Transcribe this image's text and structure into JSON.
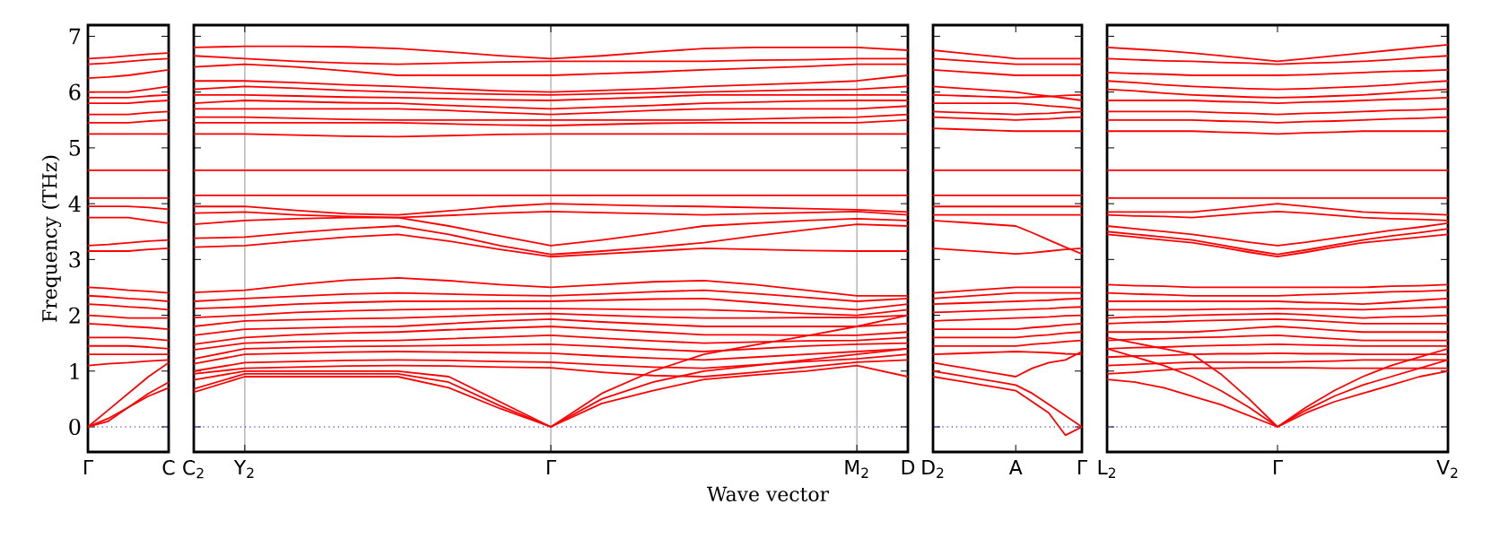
{
  "chart_data": [
    {
      "type": "line",
      "ylabel": "Frequency (THz)",
      "categories": [
        "Γ",
        null,
        null,
        null,
        "C"
      ],
      "ylim": [
        -0.45,
        7.2
      ],
      "yticks": [
        0,
        1,
        2,
        3,
        4,
        5,
        6,
        7
      ],
      "ref_lines": [
        {
          "axis": "y",
          "value": 0,
          "color": "#0000ff",
          "line_style": "dotted"
        }
      ],
      "series": [
        {
          "color": "#ff0000",
          "values": [
            6.6,
            6.62,
            6.65,
            6.68,
            6.7
          ]
        },
        {
          "color": "#ff0000",
          "values": [
            6.5,
            6.52,
            6.55,
            6.58,
            6.6
          ]
        },
        {
          "color": "#ff0000",
          "values": [
            6.25,
            6.27,
            6.3,
            6.35,
            6.4
          ]
        },
        {
          "color": "#ff0000",
          "values": [
            6.0,
            6.0,
            6.0,
            6.05,
            6.1
          ]
        },
        {
          "color": "#ff0000",
          "values": [
            5.9,
            5.9,
            5.9,
            5.93,
            5.95
          ]
        },
        {
          "color": "#ff0000",
          "values": [
            5.8,
            5.8,
            5.8,
            5.83,
            5.85
          ]
        },
        {
          "color": "#ff0000",
          "values": [
            5.6,
            5.6,
            5.6,
            5.63,
            5.65
          ]
        },
        {
          "color": "#ff0000",
          "values": [
            5.45,
            5.45,
            5.45,
            5.48,
            5.5
          ]
        },
        {
          "color": "#ff0000",
          "values": [
            5.25,
            5.25,
            5.25,
            5.25,
            5.25
          ]
        },
        {
          "color": "#ff0000",
          "values": [
            4.6,
            4.6,
            4.6,
            4.6,
            4.6
          ]
        },
        {
          "color": "#ff0000",
          "values": [
            4.1,
            4.1,
            4.1,
            4.1,
            4.1
          ]
        },
        {
          "color": "#ff0000",
          "values": [
            3.95,
            3.95,
            3.95,
            3.93,
            3.9
          ]
        },
        {
          "color": "#ff0000",
          "values": [
            3.75,
            3.75,
            3.75,
            3.7,
            3.65
          ]
        },
        {
          "color": "#ff0000",
          "values": [
            3.25,
            3.27,
            3.3,
            3.33,
            3.35
          ]
        },
        {
          "color": "#ff0000",
          "values": [
            3.15,
            3.15,
            3.15,
            3.18,
            3.2
          ]
        },
        {
          "color": "#ff0000",
          "values": [
            2.5,
            2.48,
            2.45,
            2.43,
            2.4
          ]
        },
        {
          "color": "#ff0000",
          "values": [
            2.35,
            2.33,
            2.3,
            2.28,
            2.25
          ]
        },
        {
          "color": "#ff0000",
          "values": [
            2.2,
            2.18,
            2.15,
            2.13,
            2.1
          ]
        },
        {
          "color": "#ff0000",
          "values": [
            2.0,
            1.98,
            1.95,
            1.95,
            1.95
          ]
        },
        {
          "color": "#ff0000",
          "values": [
            1.85,
            1.83,
            1.8,
            1.78,
            1.75
          ]
        },
        {
          "color": "#ff0000",
          "values": [
            1.6,
            1.6,
            1.6,
            1.58,
            1.55
          ]
        },
        {
          "color": "#ff0000",
          "values": [
            1.45,
            1.45,
            1.45,
            1.43,
            1.4
          ]
        },
        {
          "color": "#ff0000",
          "values": [
            1.3,
            1.3,
            1.3,
            1.3,
            1.3
          ]
        },
        {
          "color": "#ff0000",
          "values": [
            1.1,
            1.13,
            1.15,
            1.18,
            1.2
          ]
        },
        {
          "color": "#ff0000",
          "values": [
            0.0,
            0.3,
            0.6,
            0.9,
            1.15
          ]
        },
        {
          "color": "#ff0000",
          "values": [
            0.0,
            0.1,
            0.35,
            0.6,
            0.8
          ]
        },
        {
          "color": "#ff0000",
          "values": [
            0.0,
            0.15,
            0.35,
            0.55,
            0.7
          ]
        }
      ]
    },
    {
      "type": "line",
      "xlabel": "Wave vector",
      "categories": [
        "C$_{2}$",
        "Y$_{2}$",
        null,
        null,
        null,
        null,
        null,
        "Γ",
        null,
        null,
        null,
        null,
        null,
        "M$_{2}$",
        "D"
      ],
      "ylim": [
        -0.45,
        7.2
      ],
      "yticks": [
        0,
        1,
        2,
        3,
        4,
        5,
        6,
        7
      ],
      "tick_labels": "x",
      "grid": "x",
      "ref_lines": [
        {
          "axis": "y",
          "value": 0,
          "color": "#0000ff",
          "line_style": "dotted"
        }
      ],
      "series": [
        {
          "color": "#ff0000",
          "values": [
            6.8,
            6.82,
            6.82,
            6.81,
            6.78,
            6.72,
            6.65,
            6.6,
            6.65,
            6.72,
            6.78,
            6.8,
            6.8,
            6.8,
            6.75
          ]
        },
        {
          "color": "#ff0000",
          "values": [
            6.65,
            6.6,
            6.55,
            6.52,
            6.5,
            6.52,
            6.54,
            6.55,
            6.55,
            6.55,
            6.55,
            6.57,
            6.58,
            6.6,
            6.6
          ]
        },
        {
          "color": "#ff0000",
          "values": [
            6.45,
            6.5,
            6.45,
            6.38,
            6.3,
            6.3,
            6.3,
            6.3,
            6.33,
            6.36,
            6.4,
            6.43,
            6.46,
            6.5,
            6.5
          ]
        },
        {
          "color": "#ff0000",
          "values": [
            6.2,
            6.2,
            6.17,
            6.13,
            6.1,
            6.06,
            6.02,
            6.0,
            6.03,
            6.06,
            6.1,
            6.13,
            6.16,
            6.2,
            6.3
          ]
        },
        {
          "color": "#ff0000",
          "values": [
            6.05,
            6.1,
            6.07,
            6.03,
            6.0,
            5.98,
            5.96,
            5.95,
            5.97,
            5.99,
            6.0,
            6.02,
            6.04,
            6.05,
            6.1
          ]
        },
        {
          "color": "#ff0000",
          "values": [
            5.95,
            5.95,
            5.93,
            5.91,
            5.9,
            5.88,
            5.86,
            5.85,
            5.88,
            5.91,
            5.95,
            5.95,
            5.95,
            5.95,
            5.95
          ]
        },
        {
          "color": "#ff0000",
          "values": [
            5.8,
            5.85,
            5.83,
            5.81,
            5.8,
            5.76,
            5.73,
            5.7,
            5.73,
            5.76,
            5.8,
            5.82,
            5.84,
            5.85,
            5.85
          ]
        },
        {
          "color": "#ff0000",
          "values": [
            5.7,
            5.7,
            5.7,
            5.7,
            5.7,
            5.67,
            5.63,
            5.6,
            5.63,
            5.67,
            5.7,
            5.7,
            5.7,
            5.7,
            5.75
          ]
        },
        {
          "color": "#ff0000",
          "values": [
            5.55,
            5.55,
            5.53,
            5.51,
            5.5,
            5.5,
            5.5,
            5.5,
            5.5,
            5.5,
            5.5,
            5.52,
            5.54,
            5.55,
            5.6
          ]
        },
        {
          "color": "#ff0000",
          "values": [
            5.45,
            5.45,
            5.45,
            5.45,
            5.45,
            5.43,
            5.41,
            5.4,
            5.42,
            5.44,
            5.45,
            5.45,
            5.45,
            5.45,
            5.5
          ]
        },
        {
          "color": "#ff0000",
          "values": [
            5.25,
            5.25,
            5.23,
            5.21,
            5.2,
            5.22,
            5.24,
            5.25,
            5.25,
            5.25,
            5.25,
            5.25,
            5.25,
            5.25,
            5.25
          ]
        },
        {
          "color": "#ff0000",
          "values": [
            4.6,
            4.6,
            4.6,
            4.6,
            4.6,
            4.6,
            4.6,
            4.6,
            4.6,
            4.6,
            4.6,
            4.6,
            4.6,
            4.6,
            4.6
          ]
        },
        {
          "color": "#ff0000",
          "values": [
            4.15,
            4.15,
            4.15,
            4.15,
            4.15,
            4.15,
            4.15,
            4.15,
            4.15,
            4.15,
            4.15,
            4.15,
            4.15,
            4.15,
            4.15
          ]
        },
        {
          "color": "#ff0000",
          "values": [
            3.95,
            3.95,
            3.88,
            3.82,
            3.8,
            3.87,
            3.95,
            4.0,
            3.98,
            3.96,
            3.95,
            3.93,
            3.91,
            3.89,
            3.85
          ]
        },
        {
          "color": "#ff0000",
          "values": [
            3.83,
            3.85,
            3.8,
            3.77,
            3.75,
            3.79,
            3.83,
            3.86,
            3.84,
            3.82,
            3.8,
            3.82,
            3.84,
            3.86,
            3.8
          ]
        },
        {
          "color": "#ff0000",
          "values": [
            3.63,
            3.7,
            3.73,
            3.75,
            3.75,
            3.6,
            3.42,
            3.25,
            3.35,
            3.47,
            3.6,
            3.65,
            3.7,
            3.73,
            3.7
          ]
        },
        {
          "color": "#ff0000",
          "values": [
            3.38,
            3.4,
            3.48,
            3.55,
            3.6,
            3.45,
            3.25,
            3.09,
            3.15,
            3.22,
            3.3,
            3.42,
            3.53,
            3.63,
            3.6
          ]
        },
        {
          "color": "#ff0000",
          "values": [
            3.22,
            3.25,
            3.33,
            3.4,
            3.45,
            3.33,
            3.18,
            3.05,
            3.1,
            3.15,
            3.2,
            3.18,
            3.16,
            3.15,
            3.15
          ]
        },
        {
          "color": "#ff0000",
          "values": [
            2.41,
            2.45,
            2.55,
            2.63,
            2.67,
            2.62,
            2.55,
            2.5,
            2.55,
            2.6,
            2.62,
            2.55,
            2.45,
            2.35,
            2.35
          ]
        },
        {
          "color": "#ff0000",
          "values": [
            2.25,
            2.3,
            2.34,
            2.38,
            2.4,
            2.38,
            2.36,
            2.35,
            2.38,
            2.42,
            2.45,
            2.39,
            2.32,
            2.25,
            2.3
          ]
        },
        {
          "color": "#ff0000",
          "values": [
            2.12,
            2.15,
            2.2,
            2.23,
            2.25,
            2.25,
            2.25,
            2.25,
            2.27,
            2.29,
            2.3,
            2.23,
            2.16,
            2.1,
            2.2
          ]
        },
        {
          "color": "#ff0000",
          "values": [
            1.96,
            2.0,
            2.05,
            2.08,
            2.1,
            2.11,
            2.12,
            2.12,
            2.11,
            2.1,
            2.1,
            2.07,
            2.03,
            2.0,
            2.1
          ]
        },
        {
          "color": "#ff0000",
          "values": [
            1.8,
            1.9,
            1.92,
            1.94,
            1.95,
            1.98,
            2.01,
            2.03,
            2.0,
            1.97,
            1.95,
            1.95,
            1.96,
            1.96,
            2.0
          ]
        },
        {
          "color": "#ff0000",
          "values": [
            1.64,
            1.75,
            1.77,
            1.79,
            1.8,
            1.85,
            1.9,
            1.93,
            1.88,
            1.84,
            1.8,
            1.8,
            1.8,
            1.8,
            1.85
          ]
        },
        {
          "color": "#ff0000",
          "values": [
            1.48,
            1.6,
            1.65,
            1.68,
            1.7,
            1.74,
            1.77,
            1.8,
            1.75,
            1.7,
            1.65,
            1.65,
            1.64,
            1.64,
            1.7
          ]
        },
        {
          "color": "#ff0000",
          "values": [
            1.38,
            1.5,
            1.53,
            1.54,
            1.55,
            1.58,
            1.61,
            1.64,
            1.59,
            1.54,
            1.5,
            1.52,
            1.54,
            1.55,
            1.6
          ]
        },
        {
          "color": "#ff0000",
          "values": [
            1.22,
            1.4,
            1.42,
            1.44,
            1.45,
            1.46,
            1.47,
            1.48,
            1.44,
            1.39,
            1.35,
            1.4,
            1.45,
            1.48,
            1.5
          ]
        },
        {
          "color": "#ff0000",
          "values": [
            1.13,
            1.3,
            1.32,
            1.34,
            1.35,
            1.34,
            1.33,
            1.32,
            1.27,
            1.23,
            1.2,
            1.25,
            1.3,
            1.35,
            1.4
          ]
        },
        {
          "color": "#ff0000",
          "values": [
            1.0,
            1.15,
            1.17,
            1.19,
            1.2,
            1.19,
            1.17,
            1.16,
            1.11,
            1.07,
            1.05,
            1.11,
            1.17,
            1.22,
            1.3
          ]
        },
        {
          "color": "#ff0000",
          "values": [
            0.95,
            1.05,
            1.07,
            1.09,
            1.1,
            1.09,
            1.07,
            1.06,
            0.98,
            0.92,
            0.9,
            0.98,
            1.07,
            1.16,
            1.2
          ]
        },
        {
          "color": "#ff0000",
          "values": [
            0.84,
            1.0,
            1.0,
            1.0,
            1.0,
            0.9,
            0.45,
            0.0,
            0.5,
            0.8,
            1.0,
            1.1,
            1.2,
            1.3,
            1.4
          ]
        },
        {
          "color": "#ff0000",
          "values": [
            0.68,
            0.95,
            0.95,
            0.95,
            0.95,
            0.8,
            0.38,
            0.0,
            0.42,
            0.65,
            0.85,
            0.93,
            1.0,
            1.1,
            0.9
          ]
        },
        {
          "color": "#ff0000",
          "values": [
            0.62,
            0.9,
            0.9,
            0.9,
            0.9,
            0.7,
            0.33,
            0.0,
            0.6,
            1.0,
            1.3,
            1.47,
            1.63,
            1.8,
            2.0
          ]
        }
      ]
    },
    {
      "type": "line",
      "categories": [
        "D$_{2}$",
        null,
        null,
        null,
        null,
        "A",
        null,
        null,
        null,
        "Γ"
      ],
      "ylim": [
        -0.45,
        7.2
      ],
      "yticks": [
        0,
        1,
        2,
        3,
        4,
        5,
        6,
        7
      ],
      "tick_labels": "x",
      "ref_lines": [
        {
          "axis": "y",
          "value": 0,
          "color": "#0000ff",
          "line_style": "dotted"
        }
      ],
      "series": [
        {
          "color": "#ff0000",
          "values": [
            6.75,
            6.72,
            6.69,
            6.66,
            6.63,
            6.6,
            6.6,
            6.6,
            6.6,
            6.6
          ]
        },
        {
          "color": "#ff0000",
          "values": [
            6.6,
            6.58,
            6.56,
            6.54,
            6.52,
            6.5,
            6.5,
            6.5,
            6.5,
            6.5
          ]
        },
        {
          "color": "#ff0000",
          "values": [
            6.4,
            6.38,
            6.36,
            6.34,
            6.32,
            6.3,
            6.3,
            6.3,
            6.3,
            6.3
          ]
        },
        {
          "color": "#ff0000",
          "values": [
            6.1,
            6.08,
            6.06,
            6.04,
            6.02,
            6.0,
            5.96,
            5.93,
            5.89,
            5.85
          ]
        },
        {
          "color": "#ff0000",
          "values": [
            5.95,
            5.94,
            5.93,
            5.92,
            5.91,
            5.9,
            5.91,
            5.92,
            5.94,
            5.95
          ]
        },
        {
          "color": "#ff0000",
          "values": [
            5.8,
            5.8,
            5.8,
            5.8,
            5.8,
            5.8,
            5.78,
            5.75,
            5.73,
            5.7
          ]
        },
        {
          "color": "#ff0000",
          "values": [
            5.65,
            5.64,
            5.63,
            5.62,
            5.61,
            5.6,
            5.61,
            5.62,
            5.64,
            5.65
          ]
        },
        {
          "color": "#ff0000",
          "values": [
            5.55,
            5.54,
            5.53,
            5.52,
            5.51,
            5.5,
            5.51,
            5.52,
            5.54,
            5.55
          ]
        },
        {
          "color": "#ff0000",
          "values": [
            5.35,
            5.34,
            5.33,
            5.32,
            5.31,
            5.3,
            5.3,
            5.3,
            5.3,
            5.3
          ]
        },
        {
          "color": "#ff0000",
          "values": [
            4.6,
            4.6,
            4.6,
            4.6,
            4.6,
            4.6,
            4.6,
            4.6,
            4.6,
            4.6
          ]
        },
        {
          "color": "#ff0000",
          "values": [
            4.15,
            4.15,
            4.15,
            4.15,
            4.15,
            4.15,
            4.15,
            4.15,
            4.15,
            4.15
          ]
        },
        {
          "color": "#ff0000",
          "values": [
            3.95,
            3.95,
            3.95,
            3.95,
            3.95,
            3.95,
            3.95,
            3.95,
            3.95,
            3.95
          ]
        },
        {
          "color": "#ff0000",
          "values": [
            3.8,
            3.8,
            3.8,
            3.8,
            3.8,
            3.8,
            3.8,
            3.8,
            3.8,
            3.8
          ]
        },
        {
          "color": "#ff0000",
          "values": [
            3.7,
            3.68,
            3.66,
            3.64,
            3.62,
            3.6,
            3.48,
            3.35,
            3.22,
            3.1
          ]
        },
        {
          "color": "#ff0000",
          "values": [
            3.2,
            3.18,
            3.16,
            3.14,
            3.12,
            3.1,
            3.12,
            3.15,
            3.18,
            3.2
          ]
        },
        {
          "color": "#ff0000",
          "values": [
            2.4,
            2.42,
            2.44,
            2.46,
            2.48,
            2.5,
            2.5,
            2.5,
            2.5,
            2.5
          ]
        },
        {
          "color": "#ff0000",
          "values": [
            2.3,
            2.32,
            2.34,
            2.36,
            2.38,
            2.4,
            2.4,
            2.4,
            2.4,
            2.4
          ]
        },
        {
          "color": "#ff0000",
          "values": [
            2.2,
            2.21,
            2.22,
            2.23,
            2.24,
            2.25,
            2.26,
            2.27,
            2.29,
            2.3
          ]
        },
        {
          "color": "#ff0000",
          "values": [
            2.05,
            2.06,
            2.07,
            2.08,
            2.09,
            2.1,
            2.11,
            2.12,
            2.14,
            2.15
          ]
        },
        {
          "color": "#ff0000",
          "values": [
            1.9,
            1.91,
            1.92,
            1.93,
            1.94,
            1.95,
            1.96,
            1.97,
            1.99,
            2.0
          ]
        },
        {
          "color": "#ff0000",
          "values": [
            1.75,
            1.75,
            1.75,
            1.75,
            1.75,
            1.75,
            1.78,
            1.8,
            1.83,
            1.85
          ]
        },
        {
          "color": "#ff0000",
          "values": [
            1.6,
            1.6,
            1.6,
            1.6,
            1.6,
            1.6,
            1.63,
            1.65,
            1.68,
            1.7
          ]
        },
        {
          "color": "#ff0000",
          "values": [
            1.45,
            1.45,
            1.45,
            1.45,
            1.45,
            1.45,
            1.48,
            1.5,
            1.53,
            1.55
          ]
        },
        {
          "color": "#ff0000",
          "values": [
            1.3,
            1.31,
            1.32,
            1.33,
            1.34,
            1.35,
            1.34,
            1.33,
            1.31,
            1.3
          ]
        },
        {
          "color": "#ff0000",
          "values": [
            1.15,
            1.1,
            1.05,
            1.0,
            0.95,
            0.9,
            1.05,
            1.15,
            1.2,
            1.35
          ]
        },
        {
          "color": "#ff0000",
          "values": [
            1.0,
            0.95,
            0.9,
            0.85,
            0.8,
            0.75,
            0.6,
            0.4,
            0.2,
            0.0
          ]
        },
        {
          "color": "#ff0000",
          "values": [
            0.9,
            0.85,
            0.8,
            0.75,
            0.7,
            0.65,
            0.45,
            0.25,
            -0.15,
            0.0
          ]
        }
      ]
    },
    {
      "type": "line",
      "categories": [
        "L$_{2}$",
        null,
        null,
        null,
        null,
        null,
        "Γ",
        null,
        null,
        null,
        null,
        null,
        "V$_{2}$"
      ],
      "ylim": [
        -0.45,
        7.2
      ],
      "yticks": [
        0,
        1,
        2,
        3,
        4,
        5,
        6,
        7
      ],
      "tick_labels": "x",
      "ref_lines": [
        {
          "axis": "y",
          "value": 0,
          "color": "#0000ff",
          "line_style": "dotted"
        }
      ],
      "series": [
        {
          "color": "#ff0000",
          "values": [
            6.8,
            6.77,
            6.74,
            6.7,
            6.65,
            6.6,
            6.55,
            6.6,
            6.65,
            6.7,
            6.75,
            6.8,
            6.85
          ]
        },
        {
          "color": "#ff0000",
          "values": [
            6.6,
            6.58,
            6.56,
            6.55,
            6.53,
            6.52,
            6.5,
            6.52,
            6.53,
            6.55,
            6.58,
            6.62,
            6.65
          ]
        },
        {
          "color": "#ff0000",
          "values": [
            6.35,
            6.33,
            6.32,
            6.3,
            6.3,
            6.3,
            6.3,
            6.31,
            6.33,
            6.35,
            6.37,
            6.38,
            6.4
          ]
        },
        {
          "color": "#ff0000",
          "values": [
            6.2,
            6.17,
            6.13,
            6.1,
            6.08,
            6.06,
            6.05,
            6.06,
            6.08,
            6.1,
            6.13,
            6.17,
            6.2
          ]
        },
        {
          "color": "#ff0000",
          "values": [
            6.05,
            6.02,
            5.98,
            5.95,
            5.93,
            5.91,
            5.9,
            5.91,
            5.93,
            5.95,
            5.98,
            6.02,
            6.05
          ]
        },
        {
          "color": "#ff0000",
          "values": [
            5.85,
            5.85,
            5.85,
            5.85,
            5.83,
            5.82,
            5.8,
            5.82,
            5.83,
            5.85,
            5.87,
            5.88,
            5.9
          ]
        },
        {
          "color": "#ff0000",
          "values": [
            5.65,
            5.65,
            5.65,
            5.65,
            5.63,
            5.62,
            5.6,
            5.62,
            5.63,
            5.65,
            5.67,
            5.68,
            5.7
          ]
        },
        {
          "color": "#ff0000",
          "values": [
            5.5,
            5.5,
            5.5,
            5.5,
            5.48,
            5.47,
            5.45,
            5.47,
            5.48,
            5.5,
            5.52,
            5.53,
            5.55
          ]
        },
        {
          "color": "#ff0000",
          "values": [
            5.3,
            5.3,
            5.3,
            5.3,
            5.28,
            5.27,
            5.25,
            5.27,
            5.28,
            5.3,
            5.3,
            5.3,
            5.3
          ]
        },
        {
          "color": "#ff0000",
          "values": [
            4.6,
            4.6,
            4.6,
            4.6,
            4.6,
            4.6,
            4.6,
            4.6,
            4.6,
            4.6,
            4.6,
            4.6,
            4.6
          ]
        },
        {
          "color": "#ff0000",
          "values": [
            4.1,
            4.1,
            4.1,
            4.1,
            4.1,
            4.1,
            4.1,
            4.1,
            4.1,
            4.1,
            4.1,
            4.1,
            4.1
          ]
        },
        {
          "color": "#ff0000",
          "values": [
            3.85,
            3.85,
            3.85,
            3.85,
            3.9,
            3.95,
            4.0,
            3.95,
            3.9,
            3.85,
            3.83,
            3.82,
            3.8
          ]
        },
        {
          "color": "#ff0000",
          "values": [
            3.8,
            3.78,
            3.77,
            3.75,
            3.79,
            3.83,
            3.86,
            3.83,
            3.79,
            3.75,
            3.73,
            3.72,
            3.7
          ]
        },
        {
          "color": "#ff0000",
          "values": [
            3.6,
            3.55,
            3.5,
            3.45,
            3.38,
            3.31,
            3.25,
            3.31,
            3.38,
            3.45,
            3.52,
            3.58,
            3.65
          ]
        },
        {
          "color": "#ff0000",
          "values": [
            3.5,
            3.45,
            3.4,
            3.35,
            3.26,
            3.17,
            3.09,
            3.17,
            3.26,
            3.35,
            3.42,
            3.48,
            3.55
          ]
        },
        {
          "color": "#ff0000",
          "values": [
            3.45,
            3.4,
            3.35,
            3.3,
            3.22,
            3.13,
            3.05,
            3.13,
            3.22,
            3.3,
            3.35,
            3.4,
            3.45
          ]
        },
        {
          "color": "#ff0000",
          "values": [
            2.55,
            2.53,
            2.52,
            2.5,
            2.5,
            2.5,
            2.5,
            2.5,
            2.5,
            2.5,
            2.52,
            2.53,
            2.55
          ]
        },
        {
          "color": "#ff0000",
          "values": [
            2.4,
            2.38,
            2.37,
            2.35,
            2.35,
            2.35,
            2.35,
            2.37,
            2.38,
            2.4,
            2.42,
            2.43,
            2.45
          ]
        },
        {
          "color": "#ff0000",
          "values": [
            2.25,
            2.25,
            2.25,
            2.25,
            2.25,
            2.25,
            2.25,
            2.23,
            2.22,
            2.2,
            2.23,
            2.27,
            2.3
          ]
        },
        {
          "color": "#ff0000",
          "values": [
            2.1,
            2.1,
            2.1,
            2.1,
            2.11,
            2.11,
            2.12,
            2.11,
            2.11,
            2.1,
            2.12,
            2.13,
            2.15
          ]
        },
        {
          "color": "#ff0000",
          "values": [
            1.95,
            1.97,
            1.98,
            2.0,
            2.01,
            2.02,
            2.03,
            2.01,
            1.98,
            1.95,
            1.97,
            1.98,
            2.0
          ]
        },
        {
          "color": "#ff0000",
          "values": [
            1.85,
            1.87,
            1.88,
            1.9,
            1.91,
            1.92,
            1.93,
            1.91,
            1.88,
            1.85,
            1.85,
            1.85,
            1.85
          ]
        },
        {
          "color": "#ff0000",
          "values": [
            1.7,
            1.7,
            1.7,
            1.7,
            1.73,
            1.77,
            1.8,
            1.77,
            1.73,
            1.7,
            1.7,
            1.7,
            1.7
          ]
        },
        {
          "color": "#ff0000",
          "values": [
            1.55,
            1.57,
            1.58,
            1.6,
            1.61,
            1.63,
            1.64,
            1.61,
            1.58,
            1.55,
            1.55,
            1.55,
            1.55
          ]
        },
        {
          "color": "#ff0000",
          "values": [
            1.4,
            1.42,
            1.43,
            1.45,
            1.46,
            1.47,
            1.48,
            1.47,
            1.46,
            1.45,
            1.45,
            1.45,
            1.45
          ]
        },
        {
          "color": "#ff0000",
          "values": [
            1.25,
            1.27,
            1.28,
            1.3,
            1.31,
            1.31,
            1.32,
            1.31,
            1.31,
            1.3,
            1.3,
            1.3,
            1.3
          ]
        },
        {
          "color": "#ff0000",
          "values": [
            1.1,
            1.12,
            1.14,
            1.16,
            1.16,
            1.16,
            1.16,
            1.17,
            1.18,
            1.2,
            1.2,
            1.2,
            1.2
          ]
        },
        {
          "color": "#ff0000",
          "values": [
            0.95,
            0.98,
            1.02,
            1.05,
            1.05,
            1.06,
            1.06,
            1.06,
            1.05,
            1.05,
            1.05,
            1.05,
            1.05
          ]
        },
        {
          "color": "#ff0000",
          "values": [
            0.85,
            0.8,
            0.7,
            0.55,
            0.4,
            0.2,
            0.0,
            0.25,
            0.45,
            0.6,
            0.75,
            0.9,
            1.0
          ]
        },
        {
          "color": "#ff0000",
          "values": [
            1.4,
            1.25,
            1.1,
            0.9,
            0.65,
            0.35,
            0.0,
            0.3,
            0.55,
            0.75,
            0.9,
            1.05,
            1.2
          ]
        },
        {
          "color": "#ff0000",
          "values": [
            1.6,
            1.5,
            1.4,
            1.3,
            0.95,
            0.5,
            0.0,
            0.35,
            0.65,
            0.9,
            1.1,
            1.25,
            1.4
          ]
        }
      ]
    }
  ]
}
